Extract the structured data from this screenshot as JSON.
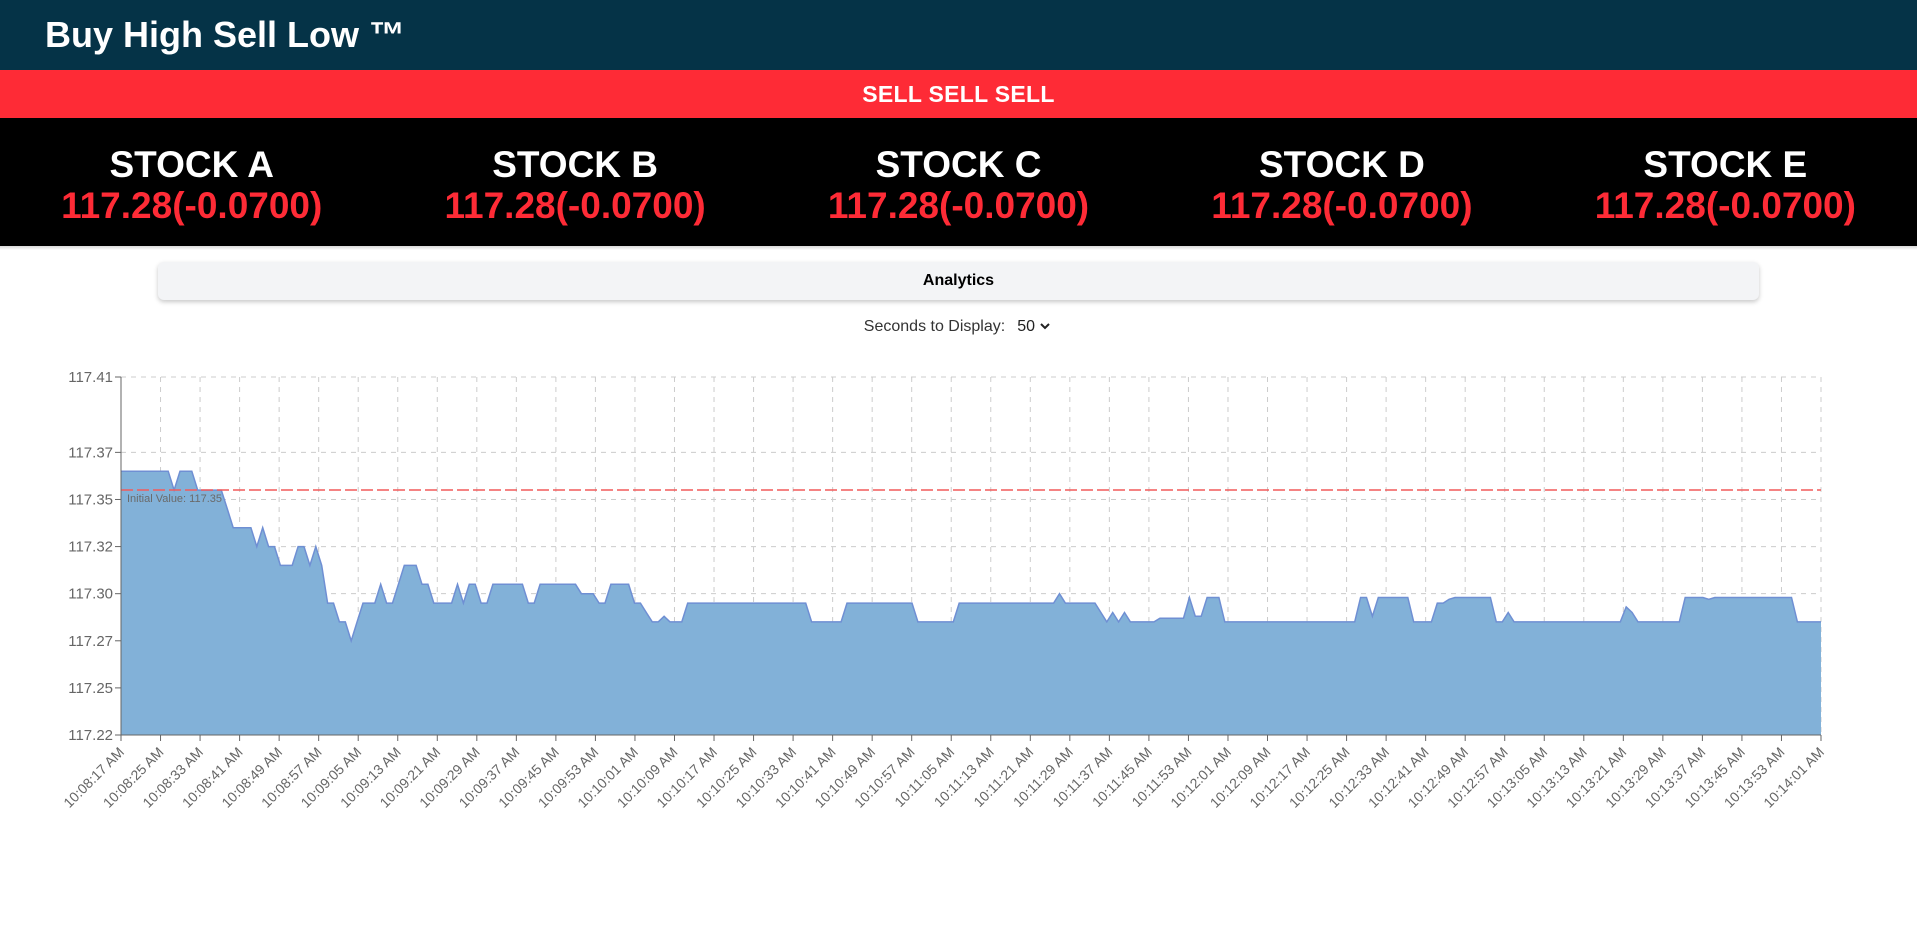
{
  "header": {
    "title": "Buy High Sell Low ™"
  },
  "banner": {
    "text": "SELL SELL SELL"
  },
  "stocks": [
    {
      "name": "STOCK A",
      "price": "117.28(-0.0700)"
    },
    {
      "name": "STOCK B",
      "price": "117.28(-0.0700)"
    },
    {
      "name": "STOCK C",
      "price": "117.28(-0.0700)"
    },
    {
      "name": "STOCK D",
      "price": "117.28(-0.0700)"
    },
    {
      "name": "STOCK E",
      "price": "117.28(-0.0700)"
    }
  ],
  "analytics": {
    "label": "Analytics"
  },
  "controls": {
    "label": "Seconds to Display:",
    "selected": "50"
  },
  "chart_data": {
    "type": "area",
    "color": "#82b1d8",
    "reference_line": {
      "value": 117.35,
      "label": "Initial Value: 117.35",
      "color": "#f25a5a"
    },
    "y_ticks": [
      "117.22",
      "117.25",
      "117.27",
      "117.30",
      "117.32",
      "117.35",
      "117.37",
      "117.41"
    ],
    "y_tick_values": [
      117.22,
      117.245,
      117.27,
      117.295,
      117.32,
      117.345,
      117.37,
      117.41
    ],
    "ylim": [
      117.22,
      117.41
    ],
    "grid": true,
    "x_labels": [
      "10:08:17 AM",
      "10:08:25 AM",
      "10:08:33 AM",
      "10:08:41 AM",
      "10:08:49 AM",
      "10:08:57 AM",
      "10:09:05 AM",
      "10:09:13 AM",
      "10:09:21 AM",
      "10:09:29 AM",
      "10:09:37 AM",
      "10:09:45 AM",
      "10:09:53 AM",
      "10:10:01 AM",
      "10:10:09 AM",
      "10:10:17 AM",
      "10:10:25 AM",
      "10:10:33 AM",
      "10:10:41 AM",
      "10:10:49 AM",
      "10:10:57 AM",
      "10:11:05 AM",
      "10:11:13 AM",
      "10:11:21 AM",
      "10:11:29 AM",
      "10:11:37 AM",
      "10:11:45 AM",
      "10:11:53 AM",
      "10:12:01 AM",
      "10:12:09 AM",
      "10:12:17 AM",
      "10:12:25 AM",
      "10:12:33 AM",
      "10:12:41 AM",
      "10:12:49 AM",
      "10:12:57 AM",
      "10:13:05 AM",
      "10:13:13 AM",
      "10:13:21 AM",
      "10:13:29 AM",
      "10:13:37 AM",
      "10:13:45 AM",
      "10:13:53 AM",
      "10:14:01 AM"
    ],
    "values": [
      117.36,
      117.36,
      117.36,
      117.36,
      117.36,
      117.36,
      117.36,
      117.36,
      117.36,
      117.35,
      117.36,
      117.36,
      117.36,
      117.35,
      117.35,
      117.35,
      117.35,
      117.35,
      117.34,
      117.33,
      117.33,
      117.33,
      117.33,
      117.32,
      117.33,
      117.32,
      117.32,
      117.31,
      117.31,
      117.31,
      117.32,
      117.32,
      117.31,
      117.32,
      117.31,
      117.29,
      117.29,
      117.28,
      117.28,
      117.27,
      117.28,
      117.29,
      117.29,
      117.29,
      117.3,
      117.29,
      117.29,
      117.3,
      117.31,
      117.31,
      117.31,
      117.3,
      117.3,
      117.29,
      117.29,
      117.29,
      117.29,
      117.3,
      117.29,
      117.3,
      117.3,
      117.29,
      117.29,
      117.3,
      117.3,
      117.3,
      117.3,
      117.3,
      117.3,
      117.29,
      117.29,
      117.3,
      117.3,
      117.3,
      117.3,
      117.3,
      117.3,
      117.3,
      117.295,
      117.295,
      117.295,
      117.29,
      117.29,
      117.3,
      117.3,
      117.3,
      117.3,
      117.29,
      117.29,
      117.285,
      117.28,
      117.28,
      117.283,
      117.28,
      117.28,
      117.28,
      117.29,
      117.29,
      117.29,
      117.29,
      117.29,
      117.29,
      117.29,
      117.29,
      117.29,
      117.29,
      117.29,
      117.29,
      117.29,
      117.29,
      117.29,
      117.29,
      117.29,
      117.29,
      117.29,
      117.29,
      117.29,
      117.28,
      117.28,
      117.28,
      117.28,
      117.28,
      117.28,
      117.29,
      117.29,
      117.29,
      117.29,
      117.29,
      117.29,
      117.29,
      117.29,
      117.29,
      117.29,
      117.29,
      117.29,
      117.28,
      117.28,
      117.28,
      117.28,
      117.28,
      117.28,
      117.28,
      117.29,
      117.29,
      117.29,
      117.29,
      117.29,
      117.29,
      117.29,
      117.29,
      117.29,
      117.29,
      117.29,
      117.29,
      117.29,
      117.29,
      117.29,
      117.29,
      117.29,
      117.295,
      117.29,
      117.29,
      117.29,
      117.29,
      117.29,
      117.29,
      117.285,
      117.28,
      117.285,
      117.28,
      117.285,
      117.28,
      117.28,
      117.28,
      117.28,
      117.28,
      117.282,
      117.282,
      117.282,
      117.282,
      117.282,
      117.293,
      117.283,
      117.283,
      117.293,
      117.293,
      117.293,
      117.28,
      117.28,
      117.28,
      117.28,
      117.28,
      117.28,
      117.28,
      117.28,
      117.28,
      117.28,
      117.28,
      117.28,
      117.28,
      117.28,
      117.28,
      117.28,
      117.28,
      117.28,
      117.28,
      117.28,
      117.28,
      117.28,
      117.28,
      117.293,
      117.293,
      117.283,
      117.293,
      117.293,
      117.293,
      117.293,
      117.293,
      117.293,
      117.28,
      117.28,
      117.28,
      117.28,
      117.29,
      117.29,
      117.292,
      117.293,
      117.293,
      117.293,
      117.293,
      117.293,
      117.293,
      117.293,
      117.28,
      117.28,
      117.285,
      117.28,
      117.28,
      117.28,
      117.28,
      117.28,
      117.28,
      117.28,
      117.28,
      117.28,
      117.28,
      117.28,
      117.28,
      117.28,
      117.28,
      117.28,
      117.28,
      117.28,
      117.28,
      117.28,
      117.288,
      117.285,
      117.28,
      117.28,
      117.28,
      117.28,
      117.28,
      117.28,
      117.28,
      117.28,
      117.293,
      117.293,
      117.293,
      117.293,
      117.292,
      117.293,
      117.293,
      117.293,
      117.293,
      117.293,
      117.293,
      117.293,
      117.293,
      117.293,
      117.293,
      117.293,
      117.293,
      117.293,
      117.293,
      117.28,
      117.28,
      117.28,
      117.28,
      117.28
    ]
  }
}
